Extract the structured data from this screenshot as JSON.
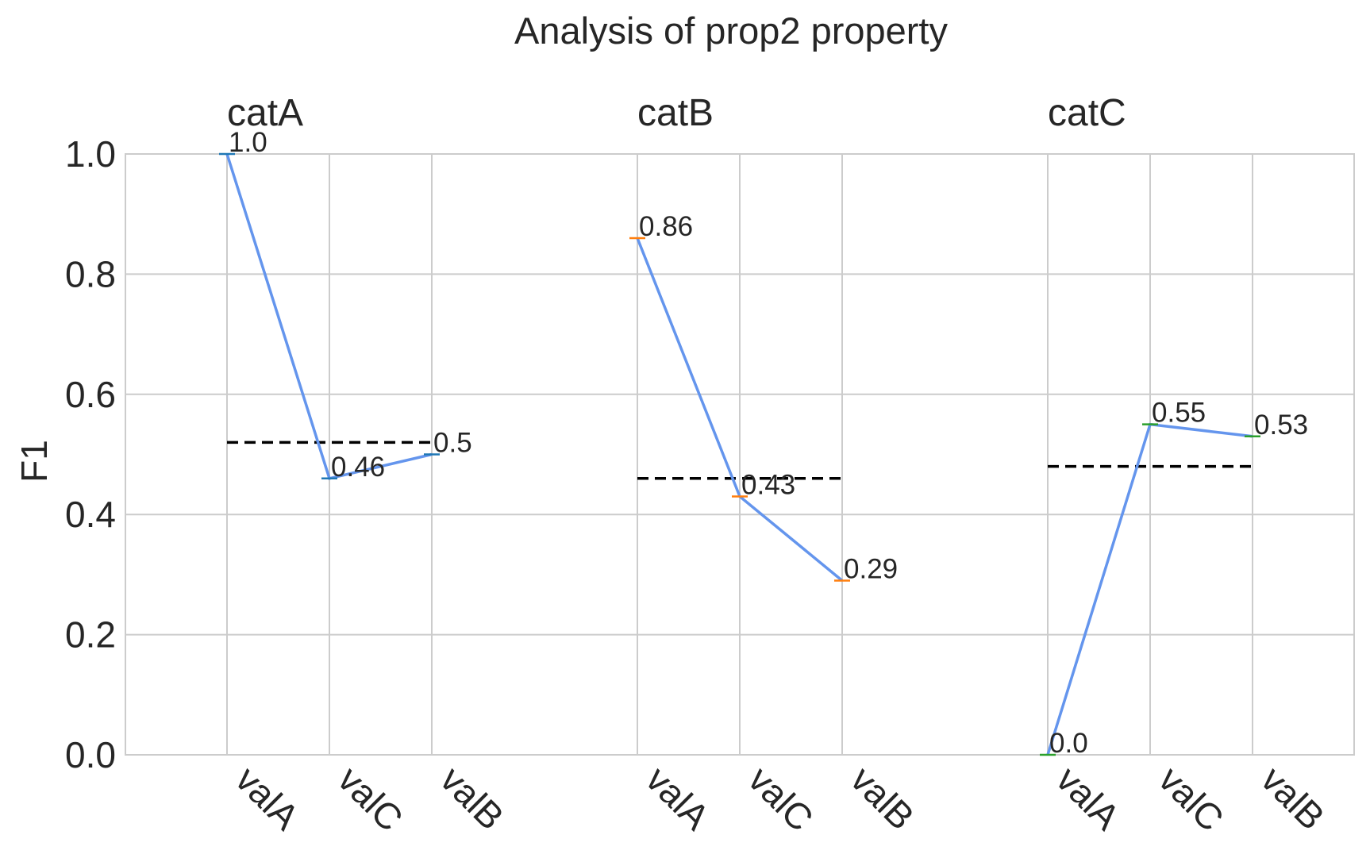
{
  "chart_data": {
    "type": "line",
    "title": "Analysis of prop2 property",
    "xlabel": "",
    "ylabel": "F1",
    "ylim": [
      0,
      1.0
    ],
    "yticks": [
      "0.0",
      "0.2",
      "0.4",
      "0.6",
      "0.8",
      "1.0"
    ],
    "grid": true,
    "groups": [
      {
        "name": "catA",
        "categories": [
          "valA",
          "valC",
          "valB"
        ],
        "values": [
          1.0,
          0.46,
          0.5
        ],
        "labels": [
          "1.0",
          "0.46",
          "0.5"
        ],
        "mean": 0.52,
        "marker_color": "#1f77b4"
      },
      {
        "name": "catB",
        "categories": [
          "valA",
          "valC",
          "valB"
        ],
        "values": [
          0.86,
          0.43,
          0.29
        ],
        "labels": [
          "0.86",
          "0.43",
          "0.29"
        ],
        "mean": 0.46,
        "marker_color": "#ff7f0e"
      },
      {
        "name": "catC",
        "categories": [
          "valA",
          "valC",
          "valB"
        ],
        "values": [
          0.0,
          0.55,
          0.53
        ],
        "labels": [
          "0.0",
          "0.55",
          "0.53"
        ],
        "mean": 0.48,
        "marker_color": "#2ca02c"
      }
    ],
    "line_color": "#6495ed",
    "mean_line_color": "#000000",
    "grid_color": "#cccccc"
  }
}
